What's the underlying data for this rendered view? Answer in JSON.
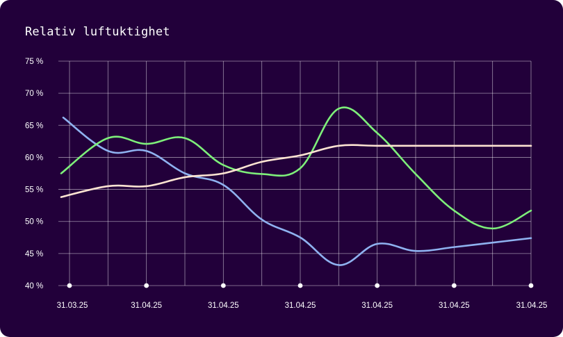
{
  "chart_data": {
    "type": "line",
    "title": "Relativ luftuktighet",
    "xlabel": "",
    "ylabel": "",
    "ylim": [
      40,
      75
    ],
    "y_ticks": [
      75,
      70,
      65,
      60,
      55,
      50,
      45,
      40
    ],
    "y_tick_suffix": " %",
    "x_tick_labels": [
      "31.03.25",
      "31.04.25",
      "31.04.25",
      "31.04.25",
      "31.04.25",
      "31.04.25",
      "31.04.25"
    ],
    "grid": true,
    "legend": "none",
    "x": [
      0,
      1,
      2,
      3,
      4,
      5,
      6,
      7,
      8,
      9,
      10,
      11,
      12
    ],
    "series": [
      {
        "color": "#8fb2f0",
        "values": [
          66.2,
          61.0,
          61.0,
          57.5,
          55.7,
          50.3,
          47.5,
          43.2,
          46.5,
          45.4,
          46.0,
          46.7,
          47.4
        ]
      },
      {
        "color": "#7ef07a",
        "values": [
          57.5,
          63.0,
          62.1,
          63.0,
          58.8,
          57.4,
          58.3,
          67.6,
          63.8,
          57.4,
          51.7,
          48.9,
          51.7
        ]
      },
      {
        "color": "#fde4d2",
        "values": [
          53.8,
          55.5,
          55.5,
          56.9,
          57.5,
          59.3,
          60.3,
          61.8,
          61.8,
          61.8,
          61.8,
          61.8,
          61.8
        ]
      }
    ],
    "colors": {
      "background": "#22003a",
      "grid": "#ffffff",
      "text": "#ffffff"
    }
  }
}
